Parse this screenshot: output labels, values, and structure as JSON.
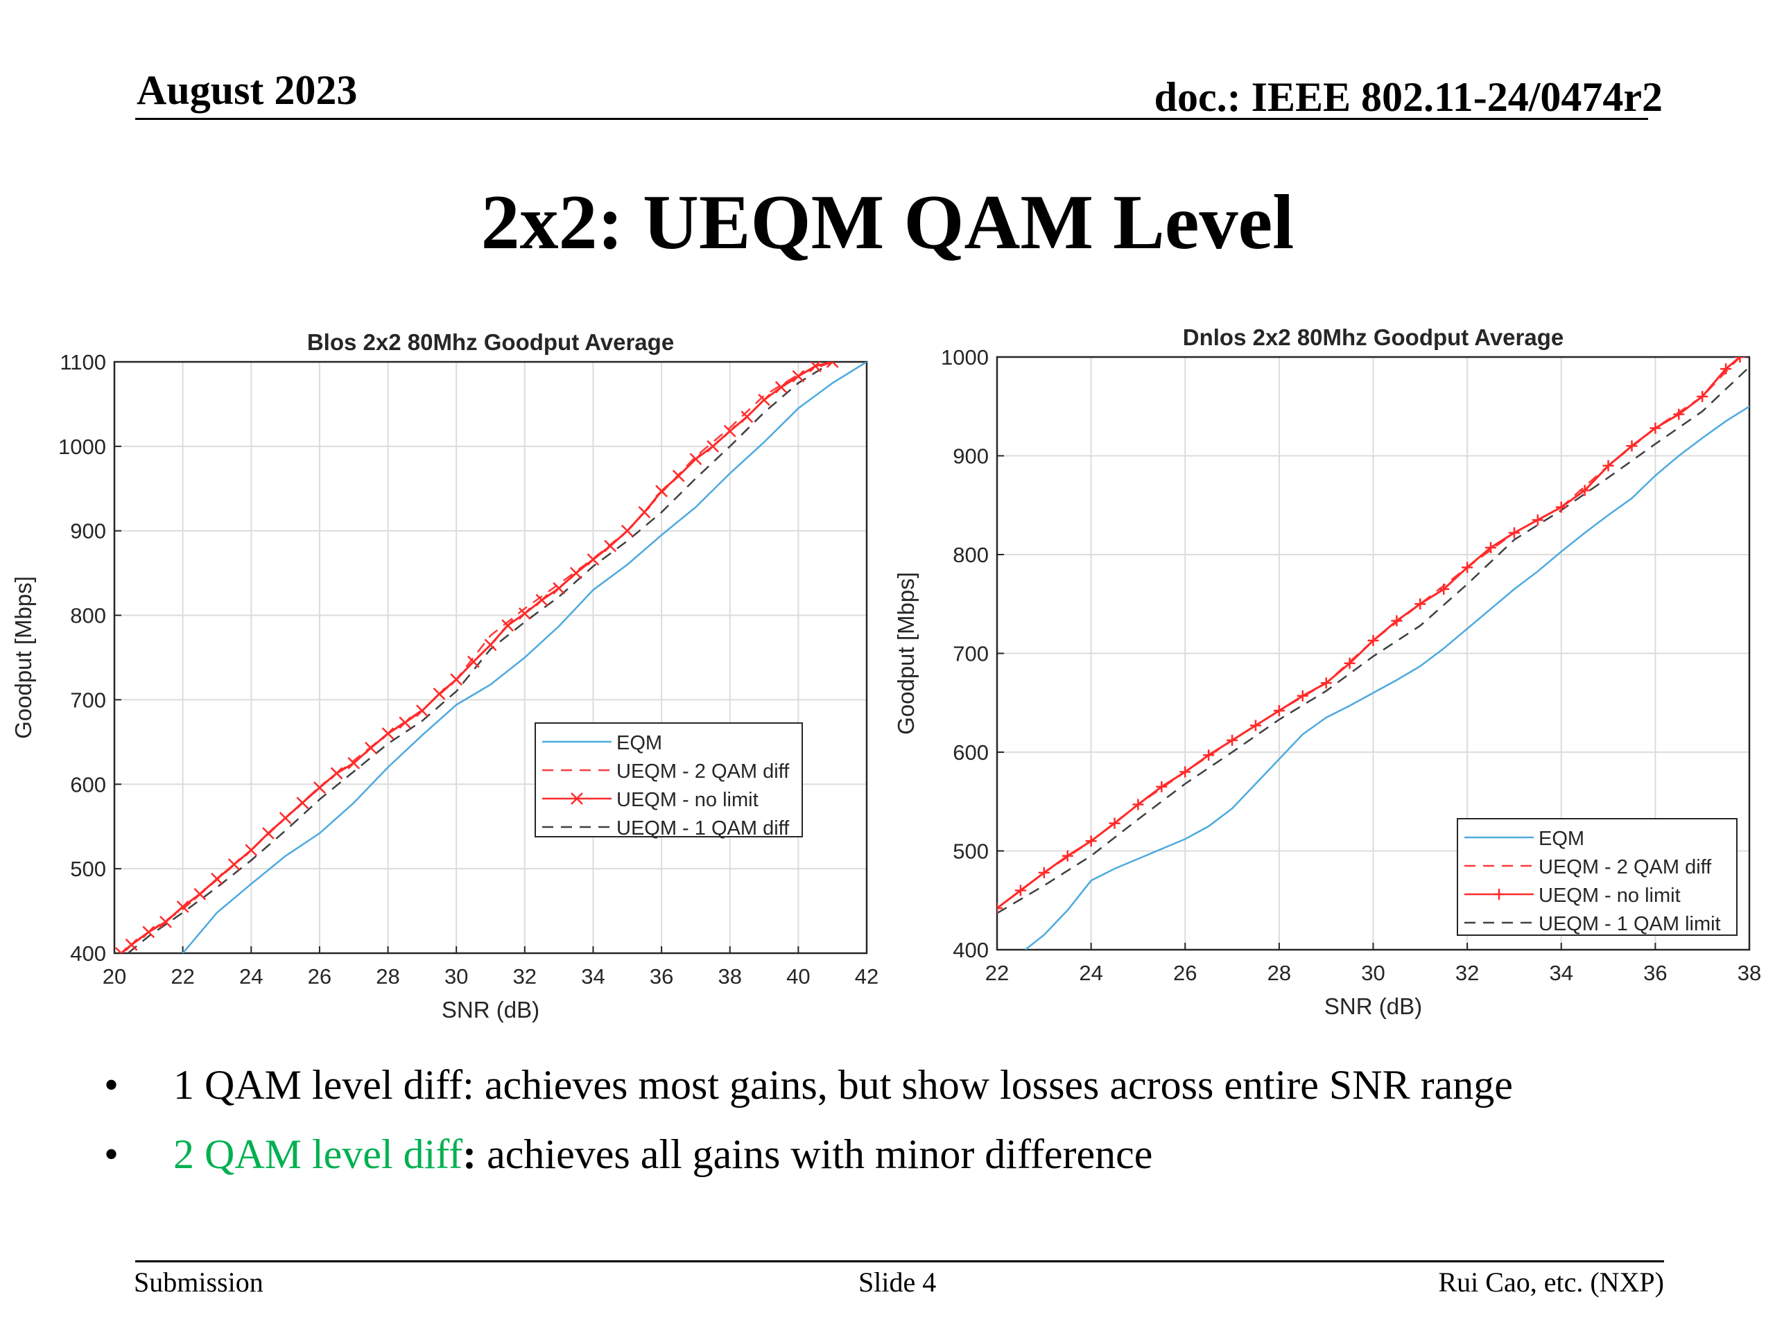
{
  "header": {
    "date": "August 2023",
    "doc": "doc.: IEEE 802.11-24/0474r2"
  },
  "slide_title": "2x2: UEQM QAM Level",
  "bullets": [
    {
      "marker": "•",
      "text": "1 QAM level diff: achieves most gains, but show losses across entire SNR range"
    },
    {
      "marker": "•",
      "highlight": "2 QAM level diff",
      "colon": ":",
      "text": " achieves all gains with minor difference"
    }
  ],
  "footer": {
    "left": "Submission",
    "center": "Slide 4",
    "right": "Rui Cao, etc. (NXP)"
  },
  "colors": {
    "eqm": "#4daadf",
    "ueqm_2qam": "#ff3b3b",
    "ueqm_nolimit": "#ff2a2a",
    "ueqm_1qam": "#404040",
    "highlight": "#00b050"
  },
  "chart_data": [
    {
      "type": "line",
      "title": "Blos 2x2  80Mhz Goodput Average",
      "xlabel": "SNR (dB)",
      "ylabel": "Goodput [Mbps]",
      "xlim": [
        20,
        42
      ],
      "ylim": [
        400,
        1100
      ],
      "xticks": [
        20,
        22,
        24,
        26,
        28,
        30,
        32,
        34,
        36,
        38,
        40,
        42
      ],
      "yticks": [
        400,
        500,
        600,
        700,
        800,
        900,
        1000,
        1100
      ],
      "grid": true,
      "legend_position": "lower-right",
      "series": [
        {
          "name": "EQM",
          "style": "solid",
          "color": "#4daadf",
          "x": [
            22,
            23,
            24,
            25,
            26,
            27,
            28,
            29,
            30,
            31,
            32,
            33,
            34,
            35,
            36,
            37,
            38,
            39,
            40,
            41,
            42
          ],
          "y": [
            400,
            448,
            482,
            515,
            542,
            578,
            620,
            658,
            694,
            718,
            750,
            787,
            830,
            860,
            895,
            928,
            968,
            1005,
            1045,
            1075,
            1100
          ]
        },
        {
          "name": "UEQM - 2 QAM diff",
          "style": "dashed",
          "color": "#ff3b3b",
          "x": [
            20.2,
            21,
            22,
            23,
            24,
            25,
            26,
            27,
            28,
            29,
            30,
            31,
            32,
            33,
            34,
            35,
            36,
            37,
            38,
            39,
            40,
            41
          ],
          "y": [
            400,
            425,
            452,
            487,
            522,
            560,
            597,
            628,
            660,
            688,
            724,
            776,
            808,
            837,
            867,
            900,
            945,
            988,
            1022,
            1060,
            1085,
            1100
          ]
        },
        {
          "name": "UEQM - no limit",
          "style": "solid-x",
          "color": "#ff2a2a",
          "x": [
            20.2,
            20.5,
            21,
            21.5,
            22,
            22.5,
            23,
            23.5,
            24,
            24.5,
            25,
            25.5,
            26,
            26.5,
            27,
            27.5,
            28,
            28.5,
            29,
            29.5,
            30,
            30.5,
            31,
            31.5,
            32,
            32.5,
            33,
            33.5,
            34,
            34.5,
            35,
            35.5,
            36,
            36.5,
            37,
            37.5,
            38,
            38.5,
            39,
            39.5,
            40,
            40.5,
            41
          ],
          "y": [
            400,
            410,
            425,
            437,
            455,
            470,
            488,
            505,
            522,
            542,
            560,
            578,
            596,
            613,
            625,
            643,
            660,
            673,
            687,
            707,
            724,
            745,
            765,
            788,
            802,
            818,
            832,
            850,
            866,
            882,
            900,
            922,
            947,
            965,
            985,
            1000,
            1018,
            1035,
            1055,
            1070,
            1083,
            1095,
            1100
          ]
        },
        {
          "name": "UEQM - 1 QAM diff",
          "style": "dashed",
          "color": "#404040",
          "x": [
            20.4,
            21,
            22,
            23,
            24,
            25,
            26,
            27,
            28,
            29,
            30,
            31,
            32,
            33,
            34,
            35,
            36,
            37,
            38,
            39,
            40,
            41
          ],
          "y": [
            400,
            420,
            448,
            478,
            510,
            545,
            582,
            615,
            648,
            675,
            710,
            760,
            792,
            822,
            858,
            888,
            922,
            962,
            1000,
            1040,
            1075,
            1100
          ]
        }
      ]
    },
    {
      "type": "line",
      "title": "Dnlos 2x2  80Mhz Goodput Average",
      "xlabel": "SNR (dB)",
      "ylabel": "Goodput [Mbps]",
      "xlim": [
        22,
        38
      ],
      "ylim": [
        400,
        1000
      ],
      "xticks": [
        22,
        24,
        26,
        28,
        30,
        32,
        34,
        36,
        38
      ],
      "yticks": [
        400,
        500,
        600,
        700,
        800,
        900,
        1000
      ],
      "grid": true,
      "legend_position": "lower-right",
      "series": [
        {
          "name": "EQM",
          "style": "solid",
          "color": "#4daadf",
          "x": [
            22.6,
            23,
            23.5,
            24,
            24.5,
            25,
            25.5,
            26,
            26.5,
            27,
            27.5,
            28,
            28.5,
            29,
            29.5,
            30,
            30.5,
            31,
            31.5,
            32,
            32.5,
            33,
            33.5,
            34,
            34.5,
            35,
            35.5,
            36,
            36.5,
            37,
            37.5,
            38
          ],
          "y": [
            400,
            415,
            440,
            470,
            482,
            492,
            502,
            512,
            525,
            543,
            568,
            593,
            618,
            635,
            647,
            660,
            673,
            687,
            705,
            725,
            745,
            765,
            783,
            803,
            822,
            840,
            857,
            880,
            900,
            918,
            935,
            950
          ]
        },
        {
          "name": "UEQM - 2 QAM diff",
          "style": "dashed",
          "color": "#ff3b3b",
          "x": [
            22,
            23,
            24,
            25,
            26,
            27,
            28,
            29,
            30,
            31,
            32,
            33,
            34,
            35,
            36,
            37,
            37.8
          ],
          "y": [
            442,
            478,
            510,
            547,
            580,
            612,
            642,
            670,
            713,
            750,
            787,
            822,
            848,
            890,
            928,
            960,
            1000
          ]
        },
        {
          "name": "UEQM - no limit",
          "style": "solid-plus",
          "color": "#ff2a2a",
          "x": [
            22,
            22.5,
            23,
            23.5,
            24,
            24.5,
            25,
            25.5,
            26,
            26.5,
            27,
            27.5,
            28,
            28.5,
            29,
            29.5,
            30,
            30.5,
            31,
            31.5,
            32,
            32.5,
            33,
            33.5,
            34,
            34.5,
            35,
            35.5,
            36,
            36.5,
            37,
            37.5,
            37.8
          ],
          "y": [
            442,
            460,
            478,
            495,
            510,
            528,
            547,
            565,
            580,
            597,
            612,
            627,
            642,
            657,
            670,
            690,
            713,
            733,
            750,
            765,
            787,
            807,
            822,
            835,
            848,
            865,
            890,
            910,
            928,
            942,
            960,
            988,
            1000
          ]
        },
        {
          "name": "UEQM - 1 QAM limit",
          "style": "dashed",
          "color": "#404040",
          "x": [
            22,
            23,
            24,
            25,
            26,
            27,
            28,
            29,
            30,
            31,
            32,
            33,
            34,
            35,
            36,
            37,
            38
          ],
          "y": [
            437,
            465,
            495,
            532,
            568,
            600,
            633,
            662,
            697,
            728,
            770,
            815,
            845,
            878,
            912,
            945,
            990
          ]
        }
      ]
    }
  ]
}
